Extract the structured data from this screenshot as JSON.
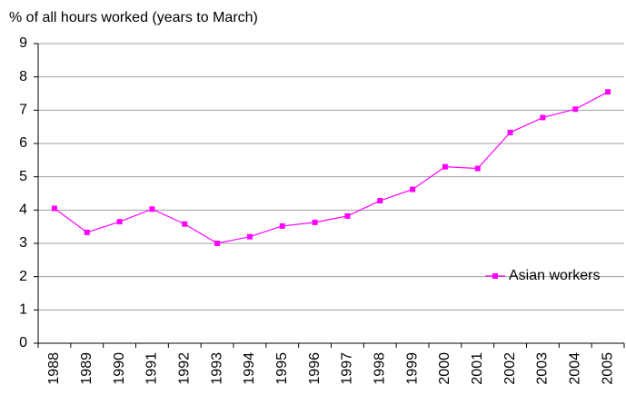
{
  "chart_data": {
    "type": "line",
    "y_axis_label": "% of all hours worked (years to March)",
    "categories": [
      "1988",
      "1989",
      "1990",
      "1991",
      "1992",
      "1993",
      "1994",
      "1995",
      "1996",
      "1997",
      "1998",
      "1999",
      "2000",
      "2001",
      "2002",
      "2003",
      "2004",
      "2005"
    ],
    "series": [
      {
        "name": "Asian workers",
        "color": "#ff00ff",
        "values": [
          4.05,
          3.33,
          3.65,
          4.03,
          3.58,
          3.0,
          3.2,
          3.52,
          3.63,
          3.82,
          4.28,
          4.62,
          5.3,
          5.25,
          6.33,
          6.78,
          7.03,
          7.55
        ]
      }
    ],
    "ylim": [
      0,
      9
    ],
    "yticks": [
      0,
      1,
      2,
      3,
      4,
      5,
      6,
      7,
      8,
      9
    ],
    "grid": true,
    "legend": "right"
  }
}
